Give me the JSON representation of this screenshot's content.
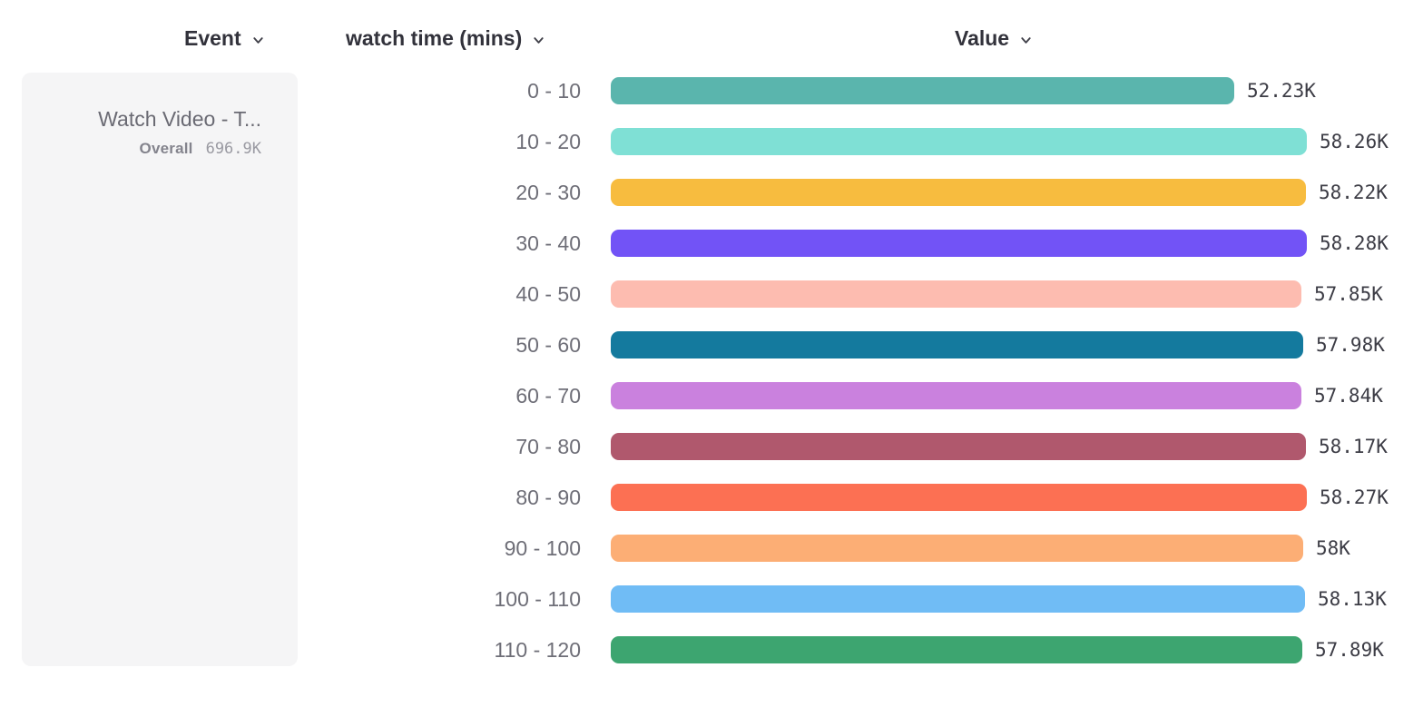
{
  "header": {
    "event_label": "Event",
    "breakdown_label": "watch time (mins)",
    "value_label": "Value"
  },
  "event_card": {
    "title": "Watch Video - T...",
    "overall_label": "Overall",
    "overall_value": "696.9K"
  },
  "chart_data": {
    "type": "bar",
    "orientation": "horizontal",
    "title": "",
    "xlabel": "Value",
    "ylabel": "watch time (mins)",
    "series_name": "Watch Video - T... (Overall 696.9K)",
    "categories": [
      "0 - 10",
      "10 - 20",
      "20 - 30",
      "30 - 40",
      "40 - 50",
      "50 - 60",
      "60 - 70",
      "70 - 80",
      "80 - 90",
      "90 - 100",
      "100 - 110",
      "110 - 120"
    ],
    "values": [
      52230,
      58260,
      58220,
      58280,
      57850,
      57980,
      57840,
      58170,
      58270,
      58000,
      58130,
      57890
    ],
    "value_labels": [
      "52.23K",
      "58.26K",
      "58.22K",
      "58.28K",
      "57.85K",
      "57.98K",
      "57.84K",
      "58.17K",
      "58.27K",
      "58K",
      "58.13K",
      "57.89K"
    ],
    "bar_colors": [
      "#5ab5ad",
      "#7fe0d5",
      "#f7bc3f",
      "#7253f6",
      "#fdbcb0",
      "#147a9e",
      "#ca81de",
      "#b0586d",
      "#fc7053",
      "#fcae75",
      "#70bcf5",
      "#3da570"
    ],
    "xlim": [
      0,
      58280
    ],
    "grid": false,
    "legend": "none"
  }
}
